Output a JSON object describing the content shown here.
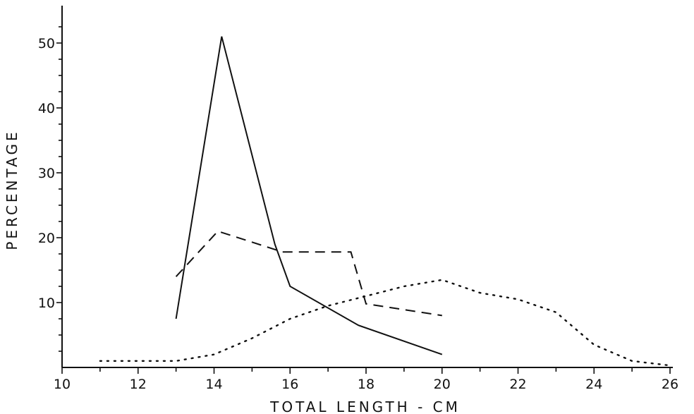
{
  "chart_data": {
    "type": "line",
    "title": "",
    "xlabel": "TOTAL LENGTH - CM",
    "ylabel": "PERCENTAGE",
    "xlim": [
      10,
      26
    ],
    "ylim": [
      0,
      55
    ],
    "x_ticks": [
      10,
      12,
      14,
      16,
      18,
      20,
      22,
      24,
      26
    ],
    "y_ticks": [
      10,
      20,
      30,
      40,
      50
    ],
    "grid": false,
    "legend": "none",
    "series": [
      {
        "style": "solid",
        "color": "#111111",
        "points": [
          [
            13.0,
            7.5
          ],
          [
            14.2,
            51.0
          ],
          [
            15.6,
            19.0
          ],
          [
            16.0,
            12.5
          ],
          [
            17.8,
            6.5
          ],
          [
            20.0,
            2.0
          ]
        ]
      },
      {
        "style": "dashed",
        "color": "#111111",
        "points": [
          [
            13.0,
            14.0
          ],
          [
            14.1,
            21.0
          ],
          [
            15.8,
            17.8
          ],
          [
            17.6,
            17.8
          ],
          [
            18.0,
            9.8
          ],
          [
            20.0,
            8.0
          ]
        ]
      },
      {
        "style": "dotted",
        "color": "#111111",
        "points": [
          [
            11.0,
            1.0
          ],
          [
            13.0,
            1.0
          ],
          [
            14.0,
            2.0
          ],
          [
            15.0,
            4.5
          ],
          [
            16.0,
            7.5
          ],
          [
            17.0,
            9.5
          ],
          [
            18.0,
            11.0
          ],
          [
            19.0,
            12.5
          ],
          [
            20.0,
            13.5
          ],
          [
            21.0,
            11.5
          ],
          [
            22.0,
            10.5
          ],
          [
            23.0,
            8.5
          ],
          [
            24.0,
            3.5
          ],
          [
            25.0,
            1.0
          ],
          [
            26.0,
            0.3
          ]
        ]
      }
    ]
  }
}
